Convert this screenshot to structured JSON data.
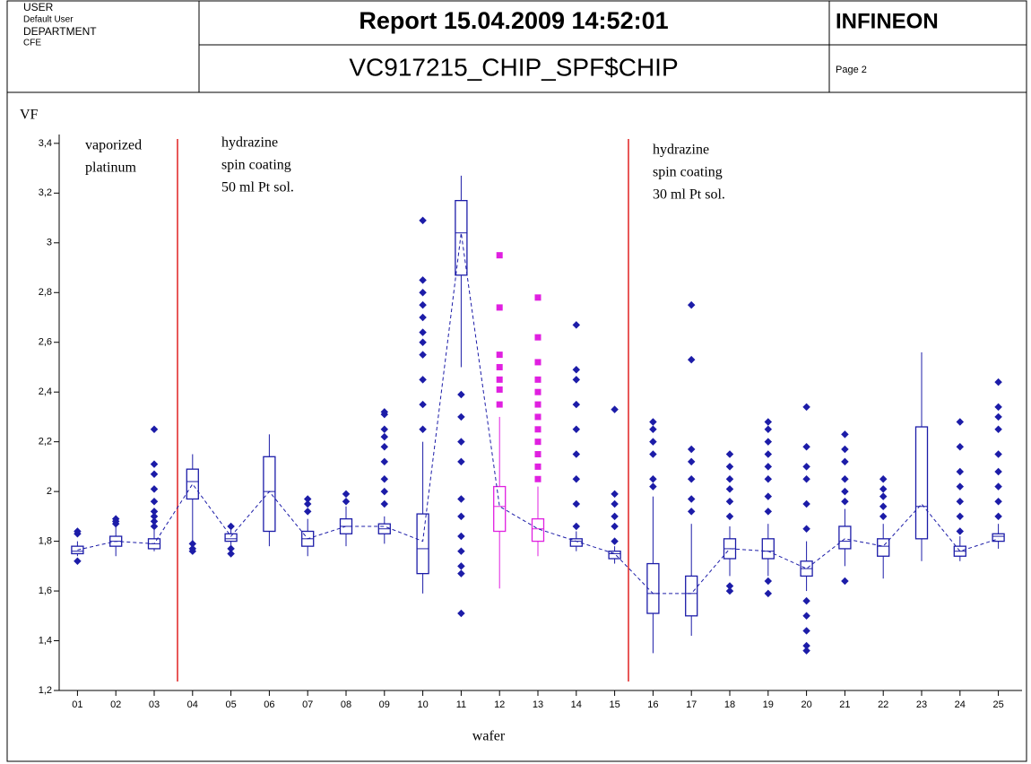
{
  "header": {
    "user_label": "USER",
    "user": "Default User",
    "department_label": "DEPARTMENT",
    "department": "CFE",
    "title": "Report 15.04.2009 14:52:01",
    "subtitle": "VC917215_CHIP_SPF$CHIP",
    "company": "INFINEON",
    "page": "Page 2"
  },
  "chart_data": {
    "type": "box",
    "y_label": "VF",
    "x_label": "wafer",
    "annotations": [
      [
        "vaporized",
        "platinum"
      ],
      [
        "hydrazine",
        "spin coating",
        "50 ml Pt sol."
      ],
      [
        "hydrazine",
        "spin coating",
        "30 ml Pt sol."
      ]
    ],
    "categories": [
      "01",
      "02",
      "03",
      "04",
      "05",
      "06",
      "07",
      "08",
      "09",
      "10",
      "11",
      "12",
      "13",
      "14",
      "15",
      "16",
      "17",
      "18",
      "19",
      "20",
      "21",
      "22",
      "23",
      "24",
      "25"
    ],
    "colors": [
      "#1c1ca8",
      "#1c1ca8",
      "#1c1ca8",
      "#1c1ca8",
      "#1c1ca8",
      "#1c1ca8",
      "#1c1ca8",
      "#1c1ca8",
      "#1c1ca8",
      "#1c1ca8",
      "#1c1ca8",
      "#e020e0",
      "#e020e0",
      "#1c1ca8",
      "#1c1ca8",
      "#1c1ca8",
      "#1c1ca8",
      "#1c1ca8",
      "#1c1ca8",
      "#1c1ca8",
      "#1c1ca8",
      "#1c1ca8",
      "#1c1ca8",
      "#1c1ca8",
      "#1c1ca8"
    ],
    "q1": [
      1.75,
      1.78,
      1.77,
      1.97,
      1.8,
      1.84,
      1.78,
      1.83,
      1.83,
      1.67,
      2.87,
      1.84,
      1.8,
      1.78,
      1.73,
      1.51,
      1.5,
      1.73,
      1.73,
      1.66,
      1.77,
      1.74,
      1.81,
      1.74,
      1.8
    ],
    "median": [
      1.76,
      1.8,
      1.79,
      2.04,
      1.81,
      2.0,
      1.81,
      1.86,
      1.85,
      1.77,
      3.04,
      1.94,
      1.85,
      1.8,
      1.75,
      1.59,
      1.59,
      1.77,
      1.76,
      1.69,
      1.8,
      1.78,
      1.94,
      1.76,
      1.82
    ],
    "q3": [
      1.78,
      1.82,
      1.81,
      2.09,
      1.83,
      2.14,
      1.84,
      1.89,
      1.87,
      1.91,
      3.17,
      2.02,
      1.89,
      1.81,
      1.76,
      1.71,
      1.66,
      1.81,
      1.81,
      1.72,
      1.86,
      1.81,
      2.26,
      1.78,
      1.83
    ],
    "whisker_low": [
      1.74,
      1.74,
      1.76,
      1.78,
      1.78,
      1.78,
      1.74,
      1.78,
      1.79,
      1.59,
      2.5,
      1.61,
      1.74,
      1.76,
      1.71,
      1.35,
      1.42,
      1.66,
      1.66,
      1.6,
      1.7,
      1.65,
      1.72,
      1.72,
      1.77
    ],
    "whisker_high": [
      1.8,
      1.86,
      1.85,
      2.15,
      1.85,
      2.23,
      1.89,
      1.94,
      1.9,
      2.2,
      3.27,
      2.3,
      2.02,
      1.84,
      1.78,
      1.98,
      1.87,
      1.86,
      1.87,
      1.8,
      1.93,
      1.87,
      2.56,
      1.82,
      1.87
    ],
    "mean": [
      1.765,
      1.8,
      1.79,
      2.03,
      1.82,
      2.0,
      1.81,
      1.86,
      1.86,
      1.8,
      3.04,
      1.94,
      1.85,
      1.8,
      1.75,
      1.59,
      1.59,
      1.77,
      1.76,
      1.69,
      1.81,
      1.78,
      1.95,
      1.76,
      1.81
    ],
    "outliers": [
      [
        1.72,
        1.83,
        1.84
      ],
      [
        1.87,
        1.88,
        1.89
      ],
      [
        1.86,
        1.88,
        1.9,
        1.92,
        1.96,
        2.01,
        2.07,
        2.11,
        2.25
      ],
      [
        1.76,
        1.77,
        1.79
      ],
      [
        1.75,
        1.77,
        1.86
      ],
      [],
      [
        1.92,
        1.95,
        1.97
      ],
      [
        1.96,
        1.99
      ],
      [
        1.95,
        2.0,
        2.05,
        2.12,
        2.18,
        2.22,
        2.25,
        2.31,
        2.32
      ],
      [
        2.25,
        2.35,
        2.45,
        2.55,
        2.6,
        2.64,
        2.7,
        2.75,
        2.8,
        2.85,
        3.09
      ],
      [
        1.51,
        1.67,
        1.7,
        1.76,
        1.82,
        1.9,
        1.97,
        2.12,
        2.2,
        2.3,
        2.39
      ],
      [
        2.35,
        2.41,
        2.45,
        2.5,
        2.55,
        2.74,
        2.95
      ],
      [
        2.05,
        2.1,
        2.15,
        2.2,
        2.25,
        2.3,
        2.35,
        2.4,
        2.45,
        2.52,
        2.62,
        2.78
      ],
      [
        1.86,
        1.95,
        2.05,
        2.15,
        2.25,
        2.35,
        2.45,
        2.49,
        2.67
      ],
      [
        1.8,
        1.86,
        1.9,
        1.95,
        1.99,
        2.33
      ],
      [
        2.02,
        2.05,
        2.15,
        2.2,
        2.25,
        2.28
      ],
      [
        1.92,
        1.97,
        2.05,
        2.12,
        2.17,
        2.53,
        2.75
      ],
      [
        1.6,
        1.62,
        1.9,
        1.96,
        2.01,
        2.05,
        2.1,
        2.15
      ],
      [
        1.59,
        1.64,
        1.92,
        1.98,
        2.05,
        2.1,
        2.15,
        2.2,
        2.25,
        2.28
      ],
      [
        1.36,
        1.38,
        1.44,
        1.5,
        1.56,
        1.85,
        1.95,
        2.05,
        2.1,
        2.18,
        2.34
      ],
      [
        1.64,
        1.96,
        2.0,
        2.05,
        2.12,
        2.17,
        2.23
      ],
      [
        1.9,
        1.94,
        1.98,
        2.01,
        2.05
      ],
      [],
      [
        1.84,
        1.9,
        1.96,
        2.02,
        2.08,
        2.18,
        2.28
      ],
      [
        1.9,
        1.96,
        2.02,
        2.08,
        2.15,
        2.25,
        2.3,
        2.34,
        2.44
      ]
    ],
    "mean_line_color": "#1c1ca8",
    "ylim": [
      1.2,
      3.45
    ],
    "yticks": [
      {
        "value": 1.2,
        "label": "1,2"
      },
      {
        "value": 1.4,
        "label": "1,4"
      },
      {
        "value": 1.6,
        "label": "1,6"
      },
      {
        "value": 1.8,
        "label": "1,8"
      },
      2,
      {
        "value": 2.2,
        "label": "2,2"
      },
      {
        "value": 2.4,
        "label": "2,4"
      },
      {
        "value": 2.6,
        "label": "2,6"
      },
      {
        "value": 2.8,
        "label": "2,8"
      },
      3,
      {
        "value": 3.2,
        "label": "3,2"
      },
      {
        "value": 3.4,
        "label": "3,4"
      }
    ]
  }
}
